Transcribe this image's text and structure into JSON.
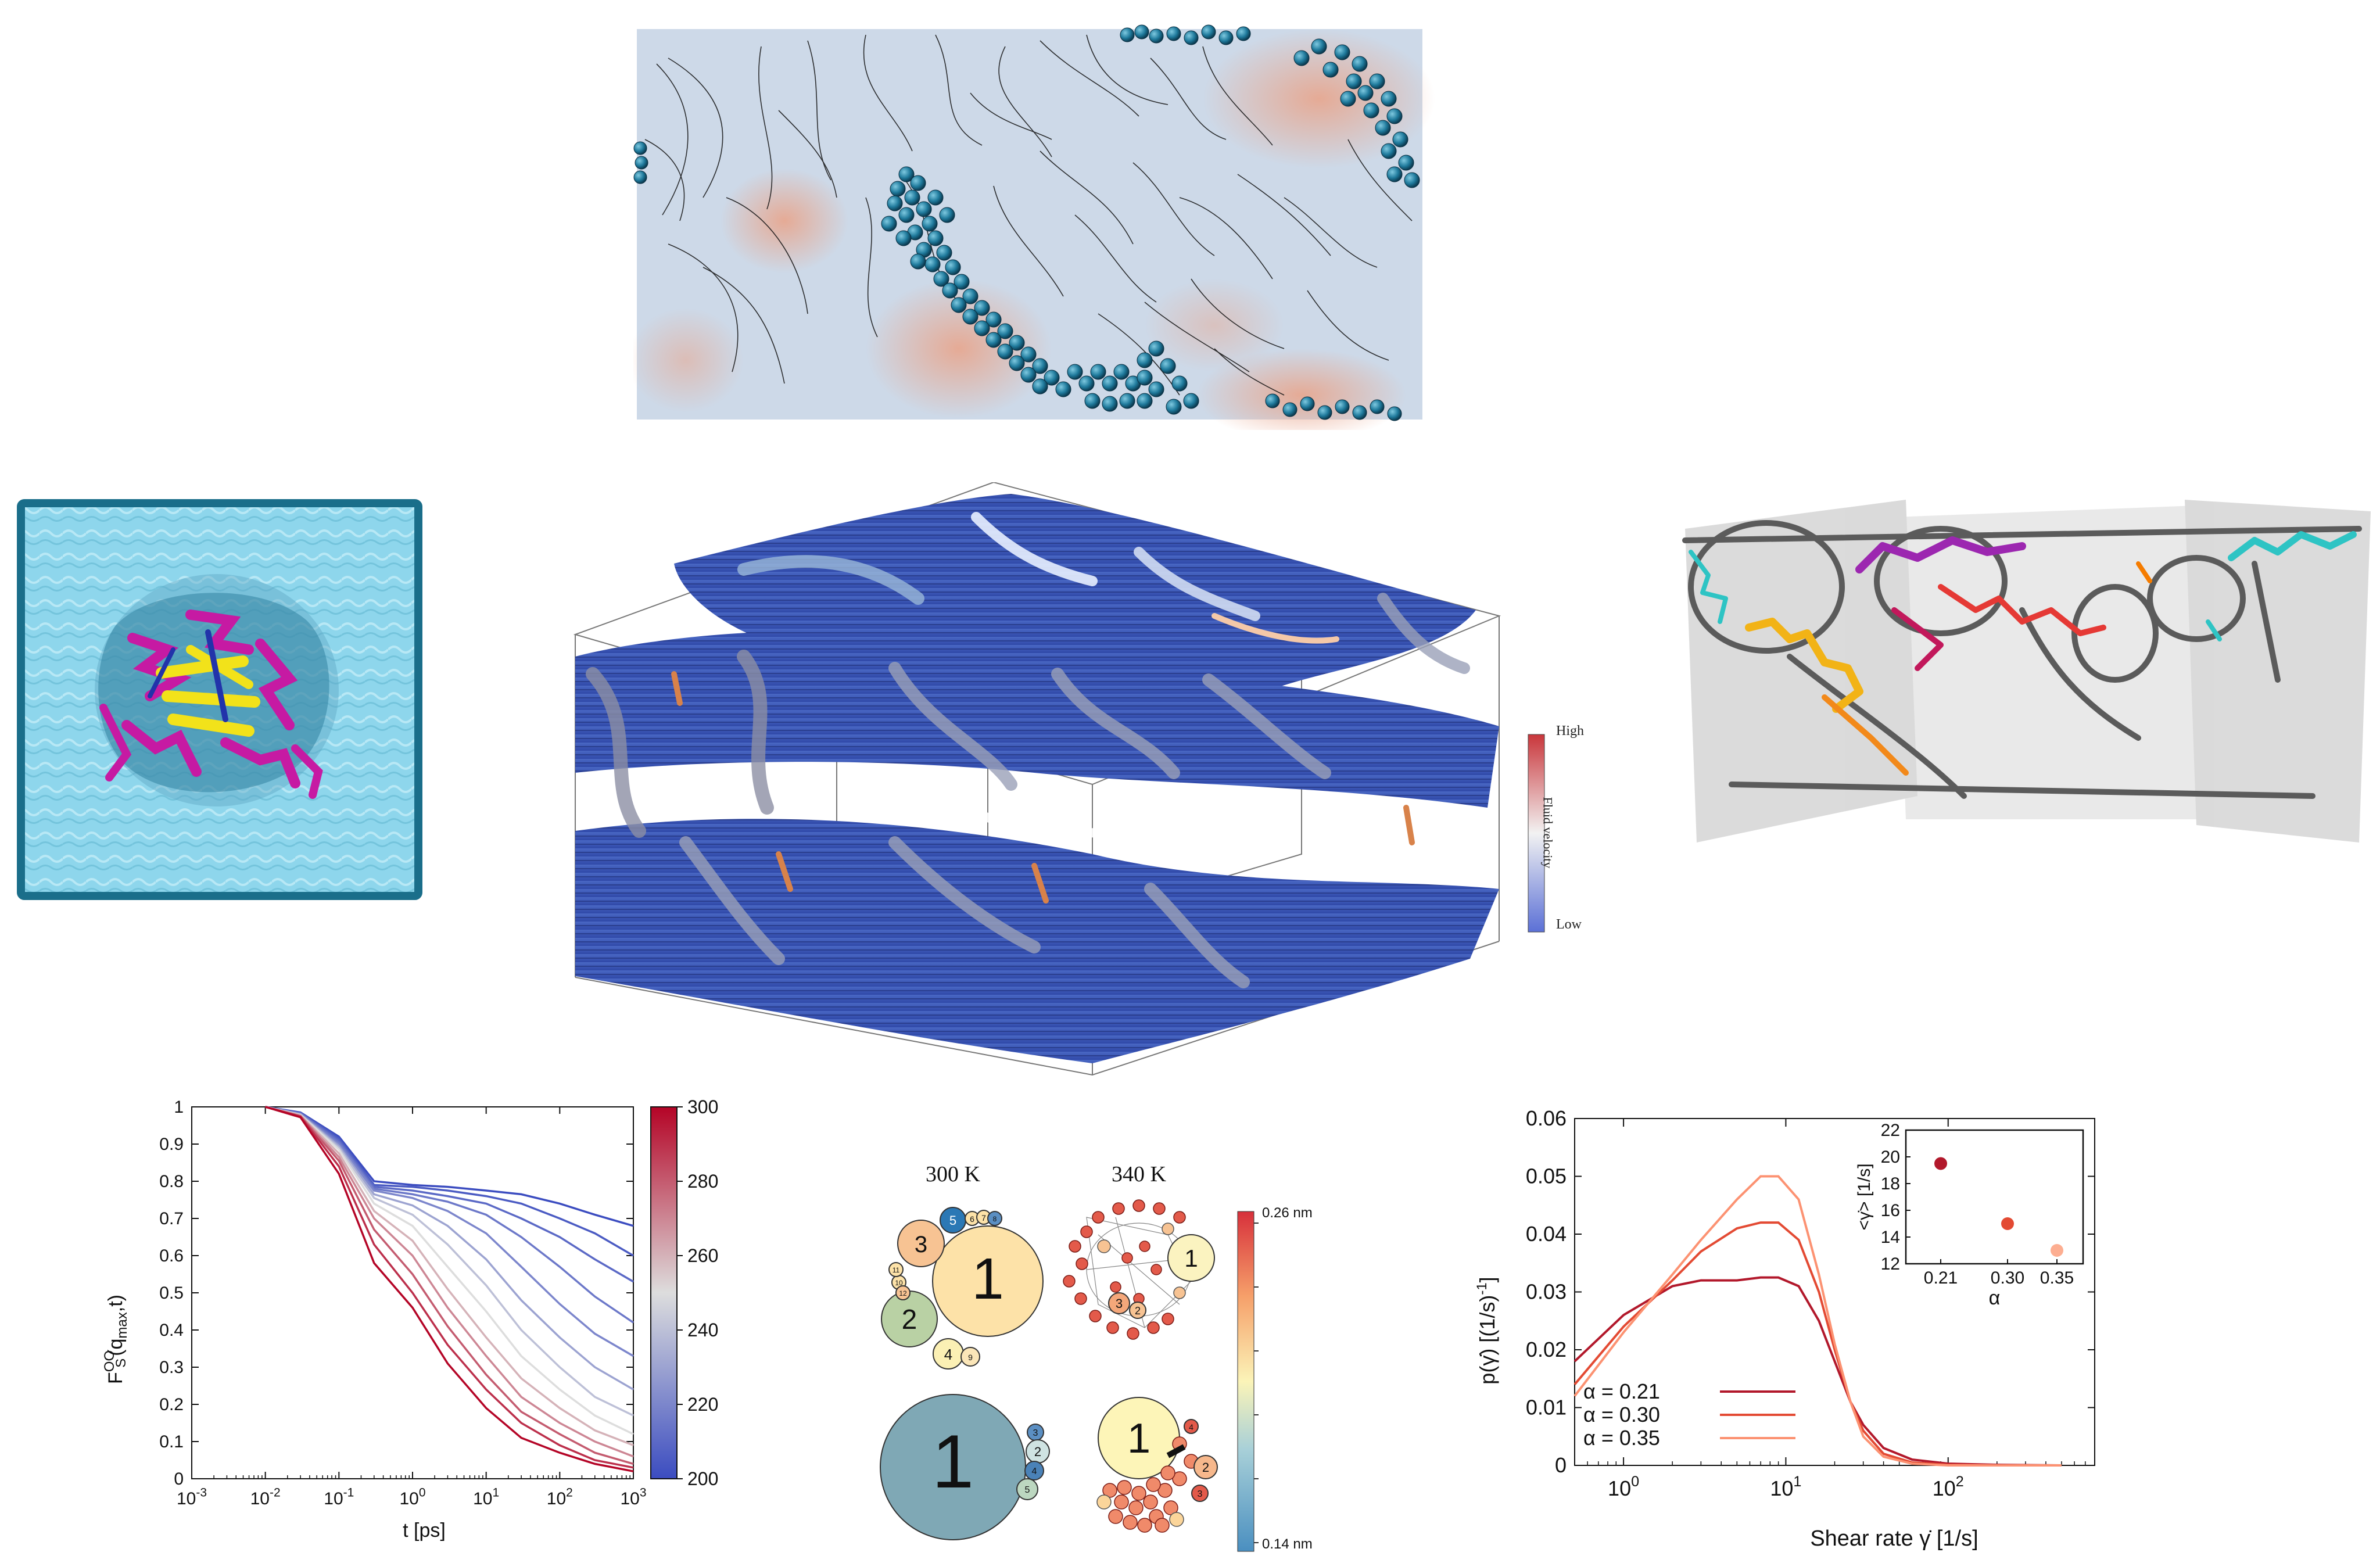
{
  "velocity_colorbar": {
    "high_label": "High",
    "axis_label": "Fluid velocity",
    "low_label": "Low"
  },
  "network_panel": {
    "col_300": "300 K",
    "col_340": "340 K",
    "colorbar_max": "0.26 nm",
    "colorbar_min": "0.14 nm",
    "bubbles_300_top": [
      "1",
      "2",
      "3",
      "4",
      "5",
      "6",
      "7",
      "8",
      "9",
      "10",
      "11",
      "12"
    ],
    "bubbles_300_bottom": [
      "1",
      "2",
      "3",
      "4",
      "5"
    ],
    "bubbles_340_top": [
      "1",
      "2",
      "3"
    ],
    "bubbles_340_bottom": [
      "1",
      "2",
      "3",
      "4"
    ]
  },
  "relaxation_chart": {
    "ylabel_main": "F",
    "ylabel_sup": "OO",
    "ylabel_sub": "S",
    "ylabel_tail": "(q",
    "ylabel_sub2": "max",
    "ylabel_end": ",t)",
    "xlabel": "t [ps]",
    "colorbar_ticks": [
      "300",
      "280",
      "260",
      "240",
      "220",
      "200"
    ]
  },
  "shear_chart": {
    "ylabel": "p(γ̇) [(1/s)",
    "ylabel_sup": "-1",
    "ylabel_end": "]",
    "xlabel": "Shear rate γ̇ [1/s]",
    "legend": [
      "α = 0.21",
      "α = 0.30",
      "α = 0.35"
    ],
    "inset_xlabel": "α",
    "inset_ylabel": "<γ̇> [1/s]"
  },
  "chart_data": [
    {
      "type": "line",
      "xlabel": "t [ps]",
      "ylabel": "F^OO_S(q_max,t)",
      "xscale": "log",
      "xlim": [
        0.001,
        1000
      ],
      "ylim": [
        0,
        1
      ],
      "x_ticks": [
        "10-3",
        "10-2",
        "10-1",
        "100",
        "101",
        "102",
        "103"
      ],
      "y_ticks": [
        "0",
        "0.1",
        "0.2",
        "0.3",
        "0.4",
        "0.5",
        "0.6",
        "0.7",
        "0.8",
        "0.9",
        "1"
      ],
      "colorbar": {
        "label_values": [
          200,
          220,
          240,
          260,
          280,
          300
        ],
        "range": [
          200,
          300
        ]
      },
      "x": [
        0.01,
        0.03,
        0.1,
        0.3,
        1,
        3,
        10,
        30,
        100,
        300,
        1000
      ],
      "series": [
        {
          "temp": 200,
          "values": [
            1.0,
            0.985,
            0.92,
            0.8,
            0.79,
            0.785,
            0.775,
            0.765,
            0.74,
            0.71,
            0.68
          ]
        },
        {
          "temp": 205,
          "values": [
            1.0,
            0.984,
            0.915,
            0.79,
            0.785,
            0.775,
            0.76,
            0.74,
            0.7,
            0.66,
            0.6
          ]
        },
        {
          "temp": 210,
          "values": [
            1.0,
            0.983,
            0.91,
            0.785,
            0.775,
            0.76,
            0.74,
            0.7,
            0.65,
            0.59,
            0.53
          ]
        },
        {
          "temp": 215,
          "values": [
            1.0,
            0.982,
            0.905,
            0.78,
            0.765,
            0.745,
            0.71,
            0.65,
            0.57,
            0.49,
            0.42
          ]
        },
        {
          "temp": 220,
          "values": [
            1.0,
            0.981,
            0.9,
            0.775,
            0.755,
            0.72,
            0.66,
            0.57,
            0.47,
            0.39,
            0.33
          ]
        },
        {
          "temp": 230,
          "values": [
            1.0,
            0.98,
            0.895,
            0.765,
            0.735,
            0.68,
            0.59,
            0.48,
            0.38,
            0.3,
            0.24
          ]
        },
        {
          "temp": 240,
          "values": [
            1.0,
            0.979,
            0.89,
            0.755,
            0.71,
            0.63,
            0.52,
            0.4,
            0.3,
            0.22,
            0.17
          ]
        },
        {
          "temp": 250,
          "values": [
            1.0,
            0.978,
            0.885,
            0.74,
            0.68,
            0.57,
            0.45,
            0.33,
            0.24,
            0.17,
            0.12
          ]
        },
        {
          "temp": 260,
          "values": [
            1.0,
            0.977,
            0.875,
            0.72,
            0.64,
            0.51,
            0.38,
            0.27,
            0.19,
            0.13,
            0.09
          ]
        },
        {
          "temp": 270,
          "values": [
            1.0,
            0.976,
            0.865,
            0.7,
            0.6,
            0.46,
            0.33,
            0.22,
            0.15,
            0.1,
            0.06
          ]
        },
        {
          "temp": 280,
          "values": [
            1.0,
            0.975,
            0.855,
            0.67,
            0.55,
            0.41,
            0.28,
            0.18,
            0.12,
            0.07,
            0.04
          ]
        },
        {
          "temp": 290,
          "values": [
            1.0,
            0.974,
            0.84,
            0.63,
            0.5,
            0.36,
            0.24,
            0.15,
            0.09,
            0.05,
            0.03
          ]
        },
        {
          "temp": 300,
          "values": [
            1.0,
            0.972,
            0.82,
            0.58,
            0.46,
            0.31,
            0.19,
            0.11,
            0.07,
            0.04,
            0.02
          ]
        }
      ]
    },
    {
      "type": "line",
      "xlabel": "Shear rate γ̇ [1/s]",
      "ylabel": "p(γ̇) [(1/s)^-1]",
      "xscale": "log",
      "xlim": [
        0.5,
        800
      ],
      "ylim": [
        0,
        0.06
      ],
      "x_ticks": [
        "100",
        "101",
        "102"
      ],
      "y_ticks": [
        "0",
        "0.01",
        "0.02",
        "0.03",
        "0.04",
        "0.05",
        "0.06"
      ],
      "x": [
        0.5,
        1,
        2,
        3,
        5,
        7,
        9,
        12,
        16,
        20,
        25,
        30,
        40,
        60,
        100,
        200,
        500
      ],
      "series": [
        {
          "name": "α = 0.21",
          "color": "#b2182b",
          "values": [
            0.018,
            0.026,
            0.031,
            0.032,
            0.032,
            0.0325,
            0.0325,
            0.031,
            0.025,
            0.018,
            0.011,
            0.007,
            0.003,
            0.001,
            0.0003,
            0.0001,
            0.0
          ]
        },
        {
          "name": "α = 0.30",
          "color": "#e34a33",
          "values": [
            0.014,
            0.024,
            0.032,
            0.037,
            0.041,
            0.042,
            0.042,
            0.039,
            0.03,
            0.02,
            0.011,
            0.006,
            0.002,
            0.0005,
            0.0001,
            0.0,
            0.0
          ]
        },
        {
          "name": "α = 0.35",
          "color": "#fc9272",
          "values": [
            0.012,
            0.023,
            0.033,
            0.039,
            0.046,
            0.05,
            0.05,
            0.046,
            0.033,
            0.021,
            0.011,
            0.005,
            0.0015,
            0.0003,
            0.0,
            0.0,
            0.0
          ]
        }
      ],
      "inset": {
        "type": "scatter",
        "xlabel": "α",
        "ylabel": "<γ̇> [1/s]",
        "x_ticks": [
          "0.21",
          "0.30",
          "0.35"
        ],
        "y_ticks": [
          "12",
          "14",
          "16",
          "18",
          "20",
          "22"
        ],
        "ylim": [
          12,
          22
        ],
        "points": [
          {
            "x": 0.21,
            "y": 19.5,
            "color": "#b2182b"
          },
          {
            "x": 0.3,
            "y": 15.0,
            "color": "#e34a33"
          },
          {
            "x": 0.35,
            "y": 13.0,
            "color": "#fdae91"
          }
        ]
      }
    }
  ]
}
